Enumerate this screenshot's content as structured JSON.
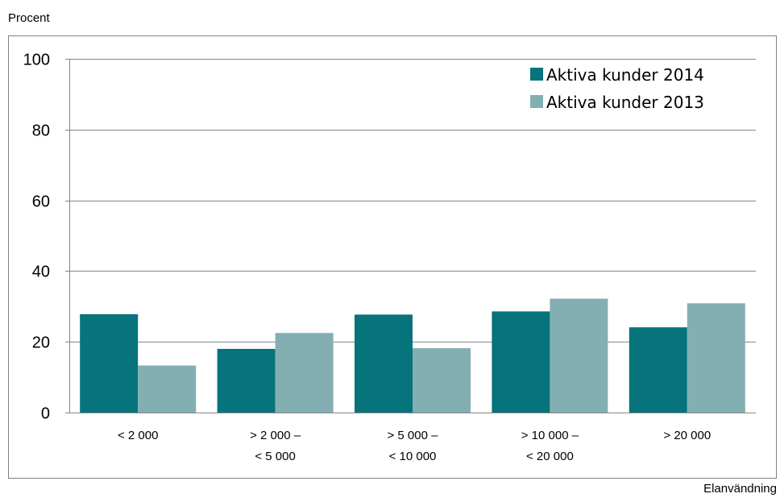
{
  "chart_data": {
    "type": "bar",
    "ylabel": "Procent",
    "xlabel": "Elanvändning",
    "categories": [
      [
        "< 2 000"
      ],
      [
        "> 2 000 –",
        "< 5 000"
      ],
      [
        "> 5 000 –",
        "< 10 000"
      ],
      [
        "> 10 000 –",
        "< 20 000"
      ],
      [
        "> 20 000"
      ]
    ],
    "series": [
      {
        "name": "Aktiva kunder 2014",
        "color": "#07737B",
        "values": [
          27.8,
          18.0,
          27.7,
          28.6,
          24.1
        ]
      },
      {
        "name": "Aktiva kunder 2013",
        "color": "#83AFB3",
        "values": [
          13.3,
          22.5,
          18.2,
          32.2,
          30.9
        ]
      }
    ],
    "ylim": [
      0,
      100
    ],
    "yticks": [
      0,
      20,
      40,
      60,
      80,
      100
    ],
    "grid": true,
    "legend": "top-right"
  }
}
